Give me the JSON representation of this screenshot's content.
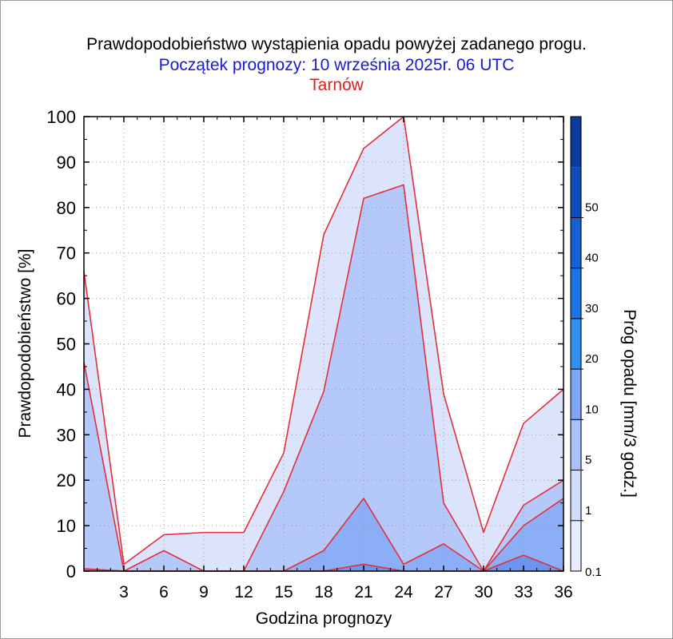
{
  "header": {
    "title": "Prawdopodobieństwo wystąpienia opadu powyżej zadanego progu.",
    "subtitle": "Początek prognozy: 10 września 2025r. 06 UTC",
    "location": "Tarnów"
  },
  "colors": {
    "title": "#000000",
    "subtitle": "#1a1ad6",
    "location": "#e01e1e",
    "outline": "#e0303a"
  },
  "chart_data": {
    "type": "area",
    "xlabel": "Godzina prognozy",
    "ylabel": "Prawdopodobieństwo [%]",
    "xlim": [
      0,
      36
    ],
    "ylim": [
      0,
      100
    ],
    "x_ticks": [
      3,
      6,
      9,
      12,
      15,
      18,
      21,
      24,
      27,
      30,
      33,
      36
    ],
    "y_ticks": [
      0,
      10,
      20,
      30,
      40,
      50,
      60,
      70,
      80,
      90,
      100
    ],
    "grid": true,
    "x": [
      0,
      3,
      6,
      9,
      12,
      15,
      18,
      21,
      24,
      27,
      30,
      33,
      36
    ],
    "series": [
      {
        "threshold": 0.1,
        "color": "#dce4fc",
        "values": [
          66,
          1.5,
          8,
          8.5,
          8.5,
          26,
          74,
          93,
          100,
          39,
          8.5,
          32.5,
          40
        ]
      },
      {
        "threshold": 1,
        "color": "#b5c8fa",
        "values": [
          46,
          0,
          4.5,
          0,
          0,
          17.5,
          39.5,
          82,
          85,
          15,
          0,
          14.5,
          20
        ]
      },
      {
        "threshold": 5,
        "color": "#8caef6",
        "values": [
          0.5,
          0,
          0,
          0,
          0,
          0,
          4.5,
          16,
          1.5,
          6,
          0,
          10,
          16
        ]
      },
      {
        "threshold": 10,
        "color": "#6b95f1",
        "values": [
          0.5,
          0,
          0,
          0,
          0,
          0,
          0,
          1.5,
          0,
          0,
          0,
          3.5,
          0
        ]
      }
    ],
    "colorbar": {
      "label": "Próg opadu [mm/3 godz.]",
      "levels": [
        "0.1",
        "1",
        "5",
        "10",
        "20",
        "30",
        "40",
        "50"
      ],
      "colors": [
        "#e8edfd",
        "#d0dcfb",
        "#a9c1f9",
        "#7ea6f5",
        "#2f91f0",
        "#1b75e6",
        "#1560d2",
        "#0f4cbc",
        "#0a3aa0"
      ]
    }
  }
}
